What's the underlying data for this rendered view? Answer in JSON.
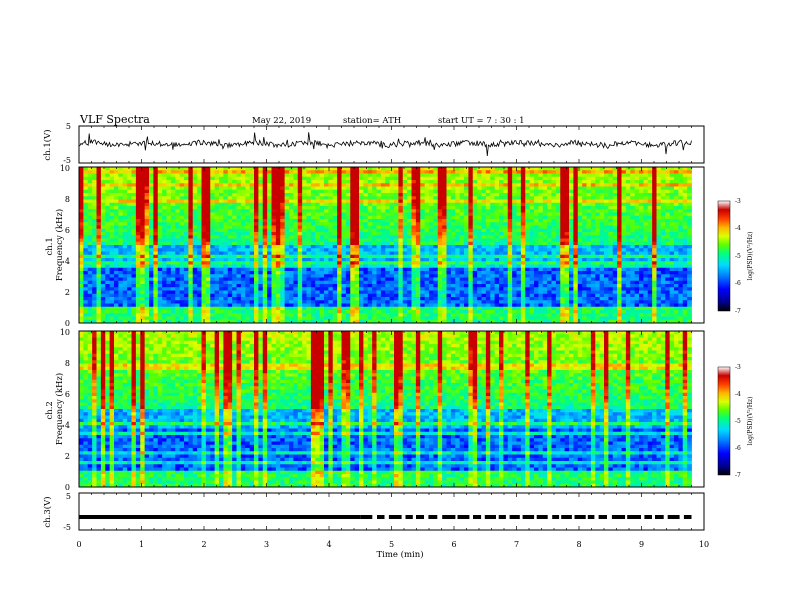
{
  "header": {
    "title": "VLF  Spectra",
    "date": "May 22, 2019",
    "station": "station= ATH",
    "start": "start  UT  =    7  : 30 : 1"
  },
  "colors": {
    "scale": [
      "#000000",
      "#00008c",
      "#0000ff",
      "#0080ff",
      "#00dcff",
      "#00ff80",
      "#5aff00",
      "#dcff00",
      "#ffb400",
      "#ff3c00",
      "#c80000",
      "#ffffff"
    ],
    "trace": "#000000",
    "frame": "#000000"
  },
  "chart_data": [
    {
      "type": "line",
      "name": "ch1-waveform",
      "ylabel": "ch.1(V)",
      "ylim": [
        -5,
        5
      ],
      "yticks": [
        "5",
        "-5"
      ],
      "xlim": [
        0,
        10
      ],
      "data_end_min": 9.8,
      "baseline_v": 0.2,
      "noise_amplitude_v": 1.4
    },
    {
      "type": "heatmap",
      "name": "ch1-spectrogram",
      "ylabel": "ch.1\nFrequency  (kHz)",
      "ylim": [
        0,
        10
      ],
      "yticks": [
        "0",
        "2",
        "4",
        "6",
        "8",
        "10"
      ],
      "xlim": [
        0,
        10
      ],
      "data_end_min": 9.8,
      "colorbar": {
        "label": "log(PSD)(V²/Hz)",
        "range": [
          -7,
          -3
        ],
        "ticks": [
          "-3",
          "-4",
          "-5",
          "-6",
          "-7"
        ]
      }
    },
    {
      "type": "heatmap",
      "name": "ch2-spectrogram",
      "ylabel": "ch.2\nFrequency  (kHz)",
      "ylim": [
        0,
        10
      ],
      "yticks": [
        "0",
        "2",
        "4",
        "6",
        "8",
        "10"
      ],
      "xlim": [
        0,
        10
      ],
      "data_end_min": 9.8,
      "colorbar": {
        "label": "log(PSD)(V²/Hz)",
        "range": [
          -7,
          -3
        ],
        "ticks": [
          "-3",
          "-4",
          "-5",
          "-6",
          "-7"
        ]
      }
    },
    {
      "type": "line",
      "name": "ch3-timing",
      "ylabel": "ch.3(V)",
      "ylim": [
        -5,
        5
      ],
      "yticks": [
        "5",
        "-5"
      ],
      "xlim": [
        0,
        10
      ],
      "data_end_min": 9.8,
      "level_v": -1.5
    }
  ],
  "xaxis": {
    "label": "Time  (min)",
    "ticks": [
      "0",
      "1",
      "2",
      "3",
      "4",
      "5",
      "6",
      "7",
      "8",
      "9",
      "10"
    ]
  }
}
